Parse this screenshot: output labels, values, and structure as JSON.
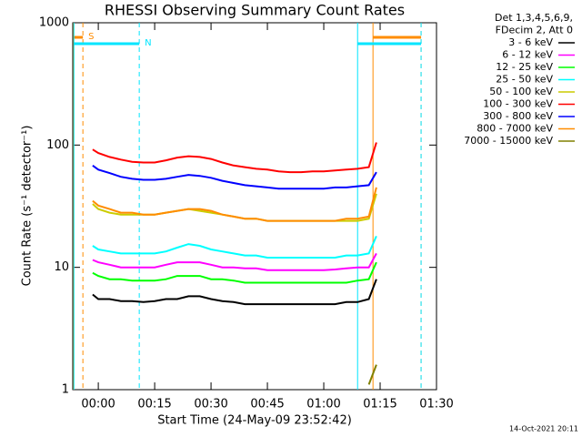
{
  "chart_data": {
    "type": "line",
    "title": "RHESSI Observing Summary Count Rates",
    "xlabel": "Start Time (24-May-09 23:52:42)",
    "ylabel": "Count Rate (s⁻¹ detector⁻¹)",
    "legend_header": [
      "Det 1,3,4,5,6,9,",
      "FDecim 2, Att 0"
    ],
    "footer": "14-Oct-2021 20:11",
    "yscale": "log",
    "xlim": [
      -6.8,
      90
    ],
    "ylim": [
      1,
      1000
    ],
    "yticks": [
      1,
      10,
      100,
      1000
    ],
    "xticks": [
      {
        "value": 0,
        "label": "00:00"
      },
      {
        "value": 15,
        "label": "00:15"
      },
      {
        "value": 30,
        "label": "00:30"
      },
      {
        "value": 45,
        "label": "00:45"
      },
      {
        "value": 60,
        "label": "01:00"
      },
      {
        "value": 75,
        "label": "01:15"
      },
      {
        "value": 90,
        "label": "01:30"
      }
    ],
    "flags": [
      {
        "label": "S",
        "color": "#ff8c00",
        "intervals": [
          [
            -6.6,
            -4.1
          ],
          [
            73.1,
            85.9
          ]
        ]
      },
      {
        "label": "N",
        "color": "#00e5ff",
        "intervals": [
          [
            -6.5,
            10.9
          ],
          [
            69.0,
            85.9
          ]
        ]
      }
    ],
    "x": [
      -1.5,
      0,
      3,
      6,
      9,
      12,
      15,
      18,
      21,
      24,
      27,
      30,
      33,
      36,
      39,
      42,
      45,
      48,
      51,
      54,
      57,
      60,
      63,
      66,
      69,
      72,
      74
    ],
    "series": [
      {
        "name": "3 - 6 keV",
        "color": "#000000",
        "values": [
          6,
          5.5,
          5.5,
          5.3,
          5.3,
          5.2,
          5.3,
          5.5,
          5.5,
          5.8,
          5.8,
          5.5,
          5.3,
          5.2,
          5,
          5,
          5,
          5,
          5,
          5,
          5,
          5,
          5,
          5.2,
          5.2,
          5.5,
          8
        ]
      },
      {
        "name": "6 - 12 keV",
        "color": "#ff00ff",
        "values": [
          11.5,
          11,
          10.5,
          10,
          10,
          10,
          10,
          10.5,
          11,
          11,
          11,
          10.5,
          10,
          10,
          9.8,
          9.8,
          9.5,
          9.5,
          9.5,
          9.5,
          9.5,
          9.5,
          9.6,
          9.8,
          10,
          10,
          13
        ]
      },
      {
        "name": "12 - 25 keV",
        "color": "#00ff00",
        "values": [
          9,
          8.5,
          8,
          8,
          7.8,
          7.8,
          7.8,
          8,
          8.5,
          8.5,
          8.5,
          8,
          8,
          7.8,
          7.5,
          7.5,
          7.5,
          7.5,
          7.5,
          7.5,
          7.5,
          7.5,
          7.5,
          7.5,
          7.8,
          8,
          11
        ]
      },
      {
        "name": "25 - 50 keV",
        "color": "#00ffff",
        "values": [
          15,
          14,
          13.5,
          13,
          13,
          13,
          13,
          13.5,
          14.5,
          15.5,
          15,
          14,
          13.5,
          13,
          12.5,
          12.5,
          12,
          12,
          12,
          12,
          12,
          12,
          12,
          12.5,
          12.5,
          13,
          18
        ]
      },
      {
        "name": "50 - 100 keV",
        "color": "#cccc00",
        "values": [
          33,
          30,
          28,
          27,
          27,
          27,
          27,
          28,
          29,
          30,
          29,
          28,
          27,
          26,
          25,
          25,
          24,
          24,
          24,
          24,
          24,
          24,
          24,
          24,
          24,
          25,
          40
        ]
      },
      {
        "name": "100 - 300 keV",
        "color": "#ff0000",
        "values": [
          92,
          86,
          80,
          76,
          73,
          72,
          72,
          75,
          79,
          81,
          80,
          77,
          72,
          68,
          66,
          64,
          63,
          61,
          60,
          60,
          61,
          61,
          62,
          63,
          64,
          66,
          105
        ]
      },
      {
        "name": "300 - 800 keV",
        "color": "#0000ff",
        "values": [
          68,
          63,
          59,
          55,
          53,
          52,
          52,
          53,
          55,
          57,
          56,
          54,
          51,
          49,
          47,
          46,
          45,
          44,
          44,
          44,
          44,
          44,
          45,
          45,
          46,
          47,
          60
        ]
      },
      {
        "name": "800 - 7000 keV",
        "color": "#ff8c00",
        "values": [
          35,
          32,
          30,
          28,
          28,
          27,
          27,
          28,
          29,
          30,
          30,
          29,
          27,
          26,
          25,
          25,
          24,
          24,
          24,
          24,
          24,
          24,
          24,
          25,
          25,
          26,
          45
        ]
      },
      {
        "name": "7000 - 15000 keV",
        "color": "#808000",
        "values": [
          null,
          null,
          null,
          null,
          null,
          null,
          null,
          null,
          null,
          null,
          null,
          null,
          null,
          null,
          null,
          null,
          null,
          null,
          null,
          null,
          null,
          null,
          null,
          null,
          null,
          1.1,
          1.6
        ]
      }
    ]
  }
}
